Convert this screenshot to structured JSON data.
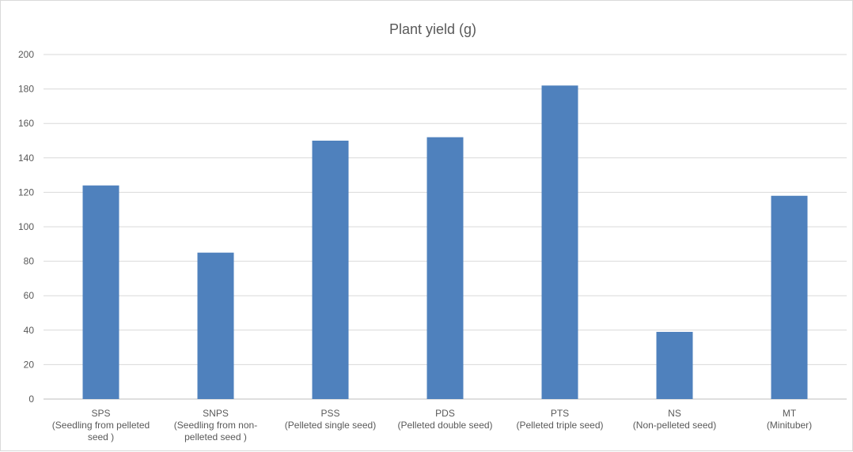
{
  "chart_data": {
    "type": "bar",
    "title": "Plant yield (g)",
    "xlabel": "",
    "ylabel": "",
    "ylim": [
      0,
      200
    ],
    "yticks": [
      0,
      20,
      40,
      60,
      80,
      100,
      120,
      140,
      160,
      180,
      200
    ],
    "grid": true,
    "legend": "none",
    "bar_color": "#4F81BD",
    "categories": [
      [
        "SPS",
        "(Seedling from pelleted",
        "seed )"
      ],
      [
        "SNPS",
        "(Seedling from non-",
        "pelleted seed )"
      ],
      [
        "PSS",
        "(Pelleted single seed)"
      ],
      [
        "PDS",
        "(Pelleted double seed)"
      ],
      [
        "PTS",
        "(Pelleted triple seed)"
      ],
      [
        "NS",
        "(Non-pelleted seed)"
      ],
      [
        "MT",
        "(Minituber)"
      ]
    ],
    "values": [
      124,
      85,
      150,
      152,
      182,
      39,
      118
    ]
  }
}
